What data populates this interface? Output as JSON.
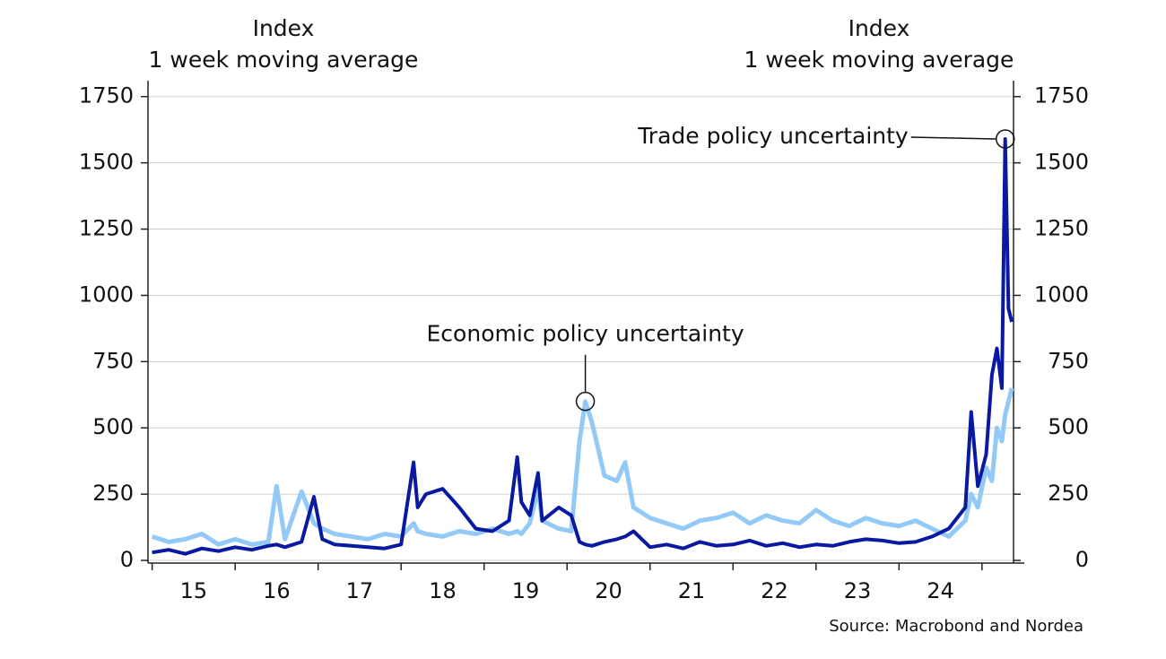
{
  "chart_data": {
    "type": "line",
    "left_axis_title": [
      "Index",
      "1 week moving average"
    ],
    "right_axis_title": [
      "Index",
      "1 week moving average"
    ],
    "source": "Source: Macrobond and Nordea",
    "x": [
      15.0,
      15.2,
      15.4,
      15.6,
      15.8,
      16.0,
      16.2,
      16.4,
      16.5,
      16.6,
      16.8,
      16.95,
      17.05,
      17.2,
      17.4,
      17.6,
      17.8,
      18.0,
      18.15,
      18.2,
      18.3,
      18.5,
      18.7,
      18.9,
      19.1,
      19.3,
      19.4,
      19.45,
      19.55,
      19.65,
      19.7,
      19.9,
      20.05,
      20.15,
      20.22,
      20.3,
      20.45,
      20.6,
      20.7,
      20.8,
      21.0,
      21.2,
      21.4,
      21.6,
      21.8,
      22.0,
      22.2,
      22.4,
      22.6,
      22.8,
      23.0,
      23.2,
      23.4,
      23.6,
      23.8,
      24.0,
      24.2,
      24.4,
      24.6,
      24.8,
      24.87,
      24.95,
      25.05,
      25.12,
      25.18,
      25.24,
      25.28,
      25.32,
      25.36
    ],
    "series": [
      {
        "name": "Economic policy uncertainty",
        "color": "#93c9f7",
        "width": 5,
        "values": [
          90,
          70,
          80,
          100,
          60,
          80,
          60,
          70,
          280,
          80,
          260,
          140,
          120,
          100,
          90,
          80,
          100,
          90,
          140,
          110,
          100,
          90,
          110,
          100,
          120,
          100,
          110,
          100,
          140,
          270,
          150,
          120,
          110,
          450,
          600,
          520,
          320,
          300,
          370,
          200,
          160,
          140,
          120,
          150,
          160,
          180,
          140,
          170,
          150,
          140,
          190,
          150,
          130,
          160,
          140,
          130,
          150,
          120,
          90,
          150,
          250,
          200,
          350,
          300,
          500,
          450,
          550,
          600,
          650
        ]
      },
      {
        "name": "Trade policy uncertainty",
        "color": "#0a1aa0",
        "width": 4,
        "values": [
          30,
          40,
          25,
          45,
          35,
          50,
          40,
          55,
          60,
          50,
          70,
          240,
          80,
          60,
          55,
          50,
          45,
          60,
          370,
          200,
          250,
          270,
          200,
          120,
          110,
          150,
          390,
          220,
          170,
          330,
          150,
          200,
          170,
          70,
          60,
          55,
          70,
          80,
          90,
          110,
          50,
          60,
          45,
          70,
          55,
          60,
          75,
          55,
          65,
          50,
          60,
          55,
          70,
          80,
          75,
          65,
          70,
          90,
          120,
          200,
          560,
          280,
          400,
          700,
          800,
          650,
          1590,
          950,
          900
        ]
      }
    ],
    "annotations": [
      {
        "series": 1,
        "point": 66,
        "position": "left"
      },
      {
        "series": 0,
        "point": 34,
        "position": "above"
      }
    ],
    "xlim": [
      14.95,
      25.38
    ],
    "xticks": [
      {
        "value": 15.5,
        "label": "15"
      },
      {
        "value": 16.5,
        "label": "16"
      },
      {
        "value": 17.5,
        "label": "17"
      },
      {
        "value": 18.5,
        "label": "18"
      },
      {
        "value": 19.5,
        "label": "19"
      },
      {
        "value": 20.5,
        "label": "20"
      },
      {
        "value": 21.5,
        "label": "21"
      },
      {
        "value": 22.5,
        "label": "22"
      },
      {
        "value": 23.5,
        "label": "23"
      },
      {
        "value": 24.5,
        "label": "24"
      }
    ],
    "ylim": [
      -10,
      1810
    ],
    "yticks": [
      0,
      250,
      500,
      750,
      1000,
      1250,
      1500,
      1750
    ],
    "y2lim": [
      -10,
      1810
    ],
    "y2ticks": [
      0,
      250,
      500,
      750,
      1000,
      1250,
      1500,
      1750
    ],
    "grid": true
  }
}
